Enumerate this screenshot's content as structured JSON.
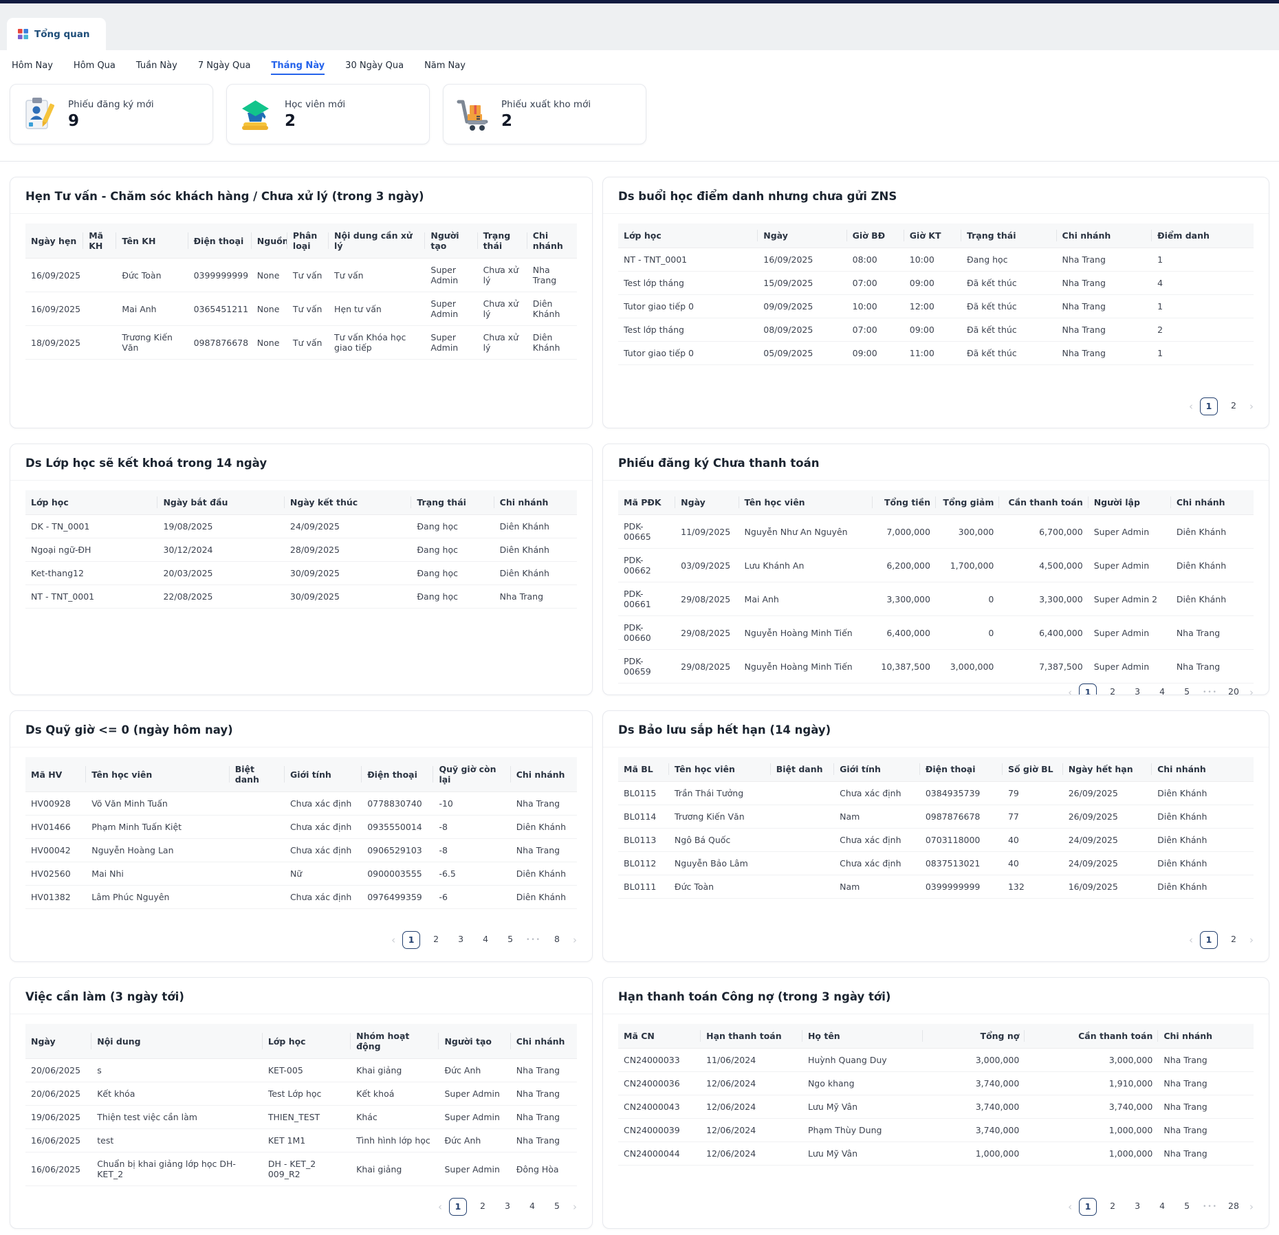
{
  "tab": {
    "label": "Tổng quan"
  },
  "filters": {
    "items": [
      "Hôm Nay",
      "Hôm Qua",
      "Tuần Này",
      "7 Ngày Qua",
      "Tháng Này",
      "30 Ngày Qua",
      "Năm Nay"
    ],
    "active": "Tháng Này"
  },
  "stats": [
    {
      "label": "Phiếu đăng ký mới",
      "value": "9",
      "icon": "registration-form-icon"
    },
    {
      "label": "Học viên mới",
      "value": "2",
      "icon": "graduation-cap-icon"
    },
    {
      "label": "Phiếu xuất kho mới",
      "value": "2",
      "icon": "warehouse-cart-icon"
    }
  ],
  "colors": {
    "topbar": "#111c40",
    "tabstrip_bg": "#eef0f2",
    "accent_blue": "#2563eb",
    "pagination_active": "#23406f",
    "header_bg": "#f7f8f9"
  },
  "panels": [
    {
      "title": "Hẹn Tư vấn - Chăm sóc khách hàng / Chưa xử lý (trong 3 ngày)",
      "columns": [
        "Ngày hẹn",
        "Mã KH",
        "Tên KH",
        "Điện thoại",
        "Nguồn",
        "Phân loại",
        "Nội dung cần xử lý",
        "Người tạo",
        "Trạng thái",
        "Chi nhánh"
      ],
      "widths": [
        "10.5%",
        "6%",
        "13%",
        "11.5%",
        "6.5%",
        "7.5%",
        "17.5%",
        "9.5%",
        "9%",
        "9%"
      ],
      "align": [
        "l",
        "l",
        "l",
        "l",
        "l",
        "l",
        "l",
        "l",
        "l",
        "l"
      ],
      "rows": [
        [
          "16/09/2025",
          "",
          "Đức Toàn",
          "0399999999",
          "None",
          "Tư vấn",
          "Tư vấn",
          "Super Admin",
          "Chưa xử lý",
          "Nha Trang"
        ],
        [
          "16/09/2025",
          "",
          "Mai Anh",
          "0365451211",
          "None",
          "Tư vấn",
          "Hẹn tư vấn",
          "Super Admin",
          "Chưa xử lý",
          "Diên Khánh"
        ],
        [
          "18/09/2025",
          "",
          "Trương Kiến Văn",
          "0987876678",
          "None",
          "Tư vấn",
          "Tư vấn Khóa học giao tiếp",
          "Super Admin",
          "Chưa xử lý",
          "Diên Khánh"
        ]
      ]
    },
    {
      "title": "Ds buổi học điểm danh nhưng chưa gửi ZNS",
      "columns": [
        "Lớp học",
        "Ngày",
        "Giờ BĐ",
        "Giờ KT",
        "Trạng thái",
        "Chi nhánh",
        "Điểm danh"
      ],
      "widths": [
        "22%",
        "14%",
        "9%",
        "9%",
        "15%",
        "15%",
        "16%"
      ],
      "align": [
        "l",
        "l",
        "l",
        "l",
        "l",
        "l",
        "l"
      ],
      "rows": [
        [
          "NT - TNT_0001",
          "16/09/2025",
          "08:00",
          "10:00",
          "Đang học",
          "Nha Trang",
          "1"
        ],
        [
          "Test lớp tháng",
          "15/09/2025",
          "07:00",
          "09:00",
          "Đã kết thúc",
          "Nha Trang",
          "4"
        ],
        [
          "Tutor giao tiếp 0",
          "09/09/2025",
          "10:00",
          "12:00",
          "Đã kết thúc",
          "Nha Trang",
          "1"
        ],
        [
          "Test lớp tháng",
          "08/09/2025",
          "07:00",
          "09:00",
          "Đã kết thúc",
          "Nha Trang",
          "2"
        ],
        [
          "Tutor giao tiếp 0",
          "05/09/2025",
          "09:00",
          "11:00",
          "Đã kết thúc",
          "Nha Trang",
          "1"
        ]
      ],
      "pagination": {
        "items": [
          "1",
          "2"
        ],
        "active": "1"
      }
    },
    {
      "title": "Ds Lớp học sẽ kết khoá trong 14 ngày",
      "columns": [
        "Lớp học",
        "Ngày bắt đầu",
        "Ngày kết thúc",
        "Trạng thái",
        "Chi nhánh"
      ],
      "widths": [
        "24%",
        "23%",
        "23%",
        "15%",
        "15%"
      ],
      "align": [
        "l",
        "l",
        "l",
        "l",
        "l"
      ],
      "rows": [
        [
          "DK - TN_0001",
          "19/08/2025",
          "24/09/2025",
          "Đang học",
          "Diên Khánh"
        ],
        [
          "Ngoại ngữ-ĐH",
          "30/12/2024",
          "28/09/2025",
          "Đang học",
          "Diên Khánh"
        ],
        [
          "Ket-thang12",
          "20/03/2025",
          "30/09/2025",
          "Đang học",
          "Diên Khánh"
        ],
        [
          "NT - TNT_0001",
          "22/08/2025",
          "30/09/2025",
          "Đang học",
          "Nha Trang"
        ]
      ]
    },
    {
      "title": "Phiếu đăng ký Chưa thanh toán",
      "columns": [
        "Mã PĐK",
        "Ngày",
        "Tên học viên",
        "Tổng tiền",
        "Tổng giảm",
        "Cần thanh toán",
        "Người lập",
        "Chi nhánh"
      ],
      "widths": [
        "9%",
        "10%",
        "21%",
        "10%",
        "10%",
        "14%",
        "13%",
        "13%"
      ],
      "align": [
        "l",
        "l",
        "l",
        "r",
        "r",
        "r",
        "l",
        "l"
      ],
      "rows": [
        [
          "PDK-00665",
          "11/09/2025",
          "Nguyễn Như An Nguyên",
          "7,000,000",
          "300,000",
          "6,700,000",
          "Super Admin",
          "Diên Khánh"
        ],
        [
          "PDK-00662",
          "03/09/2025",
          "Lưu Khánh An",
          "6,200,000",
          "1,700,000",
          "4,500,000",
          "Super Admin",
          "Diên Khánh"
        ],
        [
          "PDK-00661",
          "29/08/2025",
          "Mai Anh",
          "3,300,000",
          "0",
          "3,300,000",
          "Super Admin 2",
          "Diên Khánh"
        ],
        [
          "PDK-00660",
          "29/08/2025",
          "Nguyễn Hoàng Minh Tiến",
          "6,400,000",
          "0",
          "6,400,000",
          "Super Admin",
          "Nha Trang"
        ],
        [
          "PDK-00659",
          "29/08/2025",
          "Nguyễn Hoàng Minh Tiến",
          "10,387,500",
          "3,000,000",
          "7,387,500",
          "Super Admin",
          "Nha Trang"
        ]
      ],
      "pagination": {
        "items": [
          "1",
          "2",
          "3",
          "4",
          "5",
          "...",
          "20"
        ],
        "active": "1"
      }
    },
    {
      "title": "Ds Quỹ giờ <= 0 (ngày hôm nay)",
      "columns": [
        "Mã HV",
        "Tên học viên",
        "Biệt danh",
        "Giới tính",
        "Điện thoại",
        "Quỹ giờ còn lại",
        "Chi nhánh"
      ],
      "widths": [
        "11%",
        "26%",
        "10%",
        "14%",
        "13%",
        "14%",
        "12%"
      ],
      "align": [
        "l",
        "l",
        "l",
        "l",
        "l",
        "l",
        "l"
      ],
      "rows": [
        [
          "HV00928",
          "Võ Văn Minh Tuấn",
          "",
          "Chưa xác định",
          "0778830740",
          "-10",
          "Nha Trang"
        ],
        [
          "HV01466",
          "Phạm Minh Tuấn Kiệt",
          "",
          "Chưa xác định",
          "0935550014",
          "-8",
          "Diên Khánh"
        ],
        [
          "HV00042",
          "Nguyễn Hoàng Lan",
          "",
          "Chưa xác định",
          "0906529103",
          "-8",
          "Nha Trang"
        ],
        [
          "HV02560",
          "Mai Nhi",
          "",
          "Nữ",
          "0900003555",
          "-6.5",
          "Diên Khánh"
        ],
        [
          "HV01382",
          "Lâm Phúc Nguyên",
          "",
          "Chưa xác định",
          "0976499359",
          "-6",
          "Diên Khánh"
        ]
      ],
      "pagination": {
        "items": [
          "1",
          "2",
          "3",
          "4",
          "5",
          "...",
          "8"
        ],
        "active": "1"
      }
    },
    {
      "title": "Ds Bảo lưu sắp hết hạn (14 ngày)",
      "columns": [
        "Mã BL",
        "Tên học viên",
        "Biệt danh",
        "Giới tính",
        "Điện thoại",
        "Số giờ BL",
        "Ngày hết hạn",
        "Chi nhánh"
      ],
      "widths": [
        "8%",
        "16%",
        "10%",
        "13.5%",
        "13%",
        "9.5%",
        "14%",
        "16%"
      ],
      "align": [
        "l",
        "l",
        "l",
        "l",
        "l",
        "l",
        "l",
        "l"
      ],
      "rows": [
        [
          "BL0115",
          "Trần Thái Tưởng",
          "",
          "Chưa xác định",
          "0384935739",
          "79",
          "26/09/2025",
          "Diên Khánh"
        ],
        [
          "BL0114",
          "Trương Kiến Văn",
          "",
          "Nam",
          "0987876678",
          "77",
          "26/09/2025",
          "Diên Khánh"
        ],
        [
          "BL0113",
          "Ngô Bá Quốc",
          "",
          "Chưa xác định",
          "0703118000",
          "40",
          "24/09/2025",
          "Diên Khánh"
        ],
        [
          "BL0112",
          "Nguyễn Bảo Lâm",
          "",
          "Chưa xác định",
          "0837513021",
          "40",
          "24/09/2025",
          "Diên Khánh"
        ],
        [
          "BL0111",
          "Đức Toàn",
          "",
          "Nam",
          "0399999999",
          "132",
          "16/09/2025",
          "Diên Khánh"
        ]
      ],
      "pagination": {
        "items": [
          "1",
          "2"
        ],
        "active": "1"
      }
    },
    {
      "title": "Việc cần làm (3 ngày tới)",
      "columns": [
        "Ngày",
        "Nội dung",
        "Lớp học",
        "Nhóm hoạt động",
        "Người tạo",
        "Chi nhánh"
      ],
      "widths": [
        "12%",
        "31%",
        "16%",
        "16%",
        "13%",
        "12%"
      ],
      "align": [
        "l",
        "l",
        "l",
        "l",
        "l",
        "l"
      ],
      "rows": [
        [
          "20/06/2025",
          "s",
          "KET-005",
          "Khai giảng",
          "Đức Anh",
          "Nha Trang"
        ],
        [
          "20/06/2025",
          "Kết khóa",
          "Test Lớp học",
          "Kết khoá",
          "Super Admin",
          "Nha Trang"
        ],
        [
          "19/06/2025",
          "Thiện test việc cần làm",
          "THIEN_TEST",
          "Khác",
          "Super Admin",
          "Nha Trang"
        ],
        [
          "16/06/2025",
          "test",
          "KET 1M1",
          "Tình hình lớp học",
          "Đức Anh",
          "Nha Trang"
        ],
        [
          "16/06/2025",
          "Chuẩn bị khai giảng lớp học DH-KET_2",
          "DH - KET_2 009_R2",
          "Khai giảng",
          "Super Admin",
          "Đông Hòa"
        ]
      ],
      "pagination": {
        "items": [
          "1",
          "2",
          "3",
          "4",
          "5"
        ],
        "active": "1"
      }
    },
    {
      "title": "Hạn thanh toán Công nợ (trong 3 ngày tới)",
      "columns": [
        "Mã CN",
        "Hạn thanh toán",
        "Họ tên",
        "Tổng nợ",
        "Cần thanh toán",
        "Chi nhánh"
      ],
      "widths": [
        "13%",
        "16%",
        "19%",
        "16%",
        "21%",
        "15%"
      ],
      "align": [
        "l",
        "l",
        "l",
        "r",
        "r",
        "l"
      ],
      "rows": [
        [
          "CN24000033",
          "11/06/2024",
          "Huỳnh Quang Duy",
          "3,000,000",
          "3,000,000",
          "Nha Trang"
        ],
        [
          "CN24000036",
          "12/06/2024",
          "Ngo khang",
          "3,740,000",
          "1,910,000",
          "Nha Trang"
        ],
        [
          "CN24000043",
          "12/06/2024",
          "Lưu Mỹ Vân",
          "3,740,000",
          "3,740,000",
          "Nha Trang"
        ],
        [
          "CN24000039",
          "12/06/2024",
          "Phạm Thùy Dung",
          "3,740,000",
          "1,000,000",
          "Nha Trang"
        ],
        [
          "CN24000044",
          "12/06/2024",
          "Lưu Mỹ Vân",
          "1,000,000",
          "1,000,000",
          "Nha Trang"
        ]
      ],
      "pagination": {
        "items": [
          "1",
          "2",
          "3",
          "4",
          "5",
          "...",
          "28"
        ],
        "active": "1"
      }
    }
  ]
}
